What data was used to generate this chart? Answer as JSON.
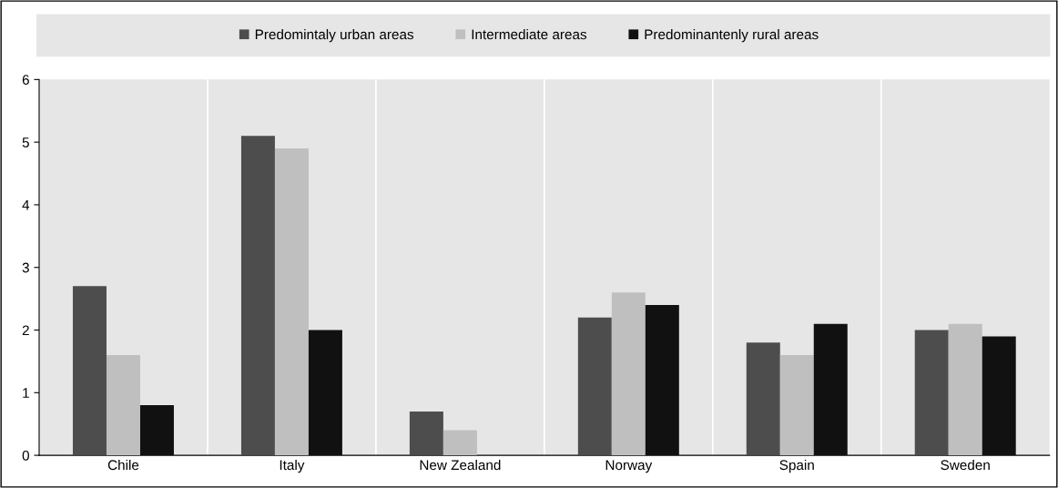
{
  "chart_data": {
    "type": "bar",
    "categories": [
      "Chile",
      "Italy",
      "New Zealand",
      "Norway",
      "Spain",
      "Sweden"
    ],
    "series": [
      {
        "name": "Predomintaly urban areas",
        "color": "#4d4d4d",
        "values": [
          2.7,
          5.1,
          0.7,
          2.2,
          1.8,
          2.0
        ]
      },
      {
        "name": "Intermediate areas",
        "color": "#bfbfbf",
        "values": [
          1.6,
          4.9,
          0.4,
          2.6,
          1.6,
          2.1
        ]
      },
      {
        "name": "Predominantenly rural areas",
        "color": "#111111",
        "values": [
          0.8,
          2.0,
          null,
          2.4,
          2.1,
          1.9
        ]
      }
    ],
    "ylim": [
      0,
      6
    ],
    "yticks": [
      0,
      1,
      2,
      3,
      4,
      5,
      6
    ],
    "grid": "x",
    "legend": "top"
  }
}
